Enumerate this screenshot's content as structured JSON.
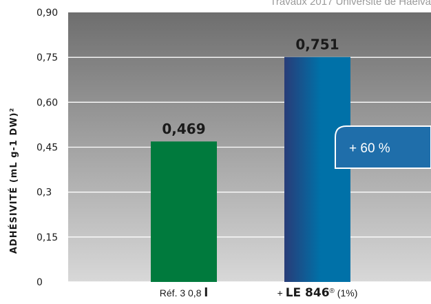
{
  "source_note": "Travaux 2017 Université de Haelva",
  "badge": {
    "text": "+ 60 %"
  },
  "colors": {
    "panel_top": "#6e6e6e",
    "panel_bottom": "#d8d8d8",
    "bar_reference": "#007a3d",
    "bar_treated_dark": "#283c78",
    "bar_treated_light": "#0071a8",
    "badge": "#1f6eaa"
  },
  "chart_data": {
    "type": "bar",
    "title": "",
    "xlabel": "",
    "ylabel": "ADHÉSIVITÉ (mL g-1 DW)²",
    "ylim": [
      0,
      0.9
    ],
    "yticks": [
      0,
      0.15,
      0.3,
      0.45,
      0.6,
      0.75,
      0.9
    ],
    "ytick_labels": [
      "0",
      "0,15",
      "0,3",
      "0,45",
      "0,60",
      "0,75",
      "0,90"
    ],
    "grid": true,
    "categories": [
      "Réf. 3 0,8 l",
      "+ LE 846® (1%)"
    ],
    "category_parts": [
      [
        {
          "text": "Réf. 3 0,8 ",
          "style": "normal"
        },
        {
          "text": "l",
          "style": "strong"
        }
      ],
      [
        {
          "text": "+ ",
          "style": "normal"
        },
        {
          "text": "LE 846",
          "style": "strong"
        },
        {
          "text": "®",
          "style": "sup"
        },
        {
          "text": " (1%)",
          "style": "normal"
        }
      ]
    ],
    "values": [
      0.469,
      0.751
    ],
    "value_labels": [
      "0,469",
      "0,751"
    ]
  }
}
